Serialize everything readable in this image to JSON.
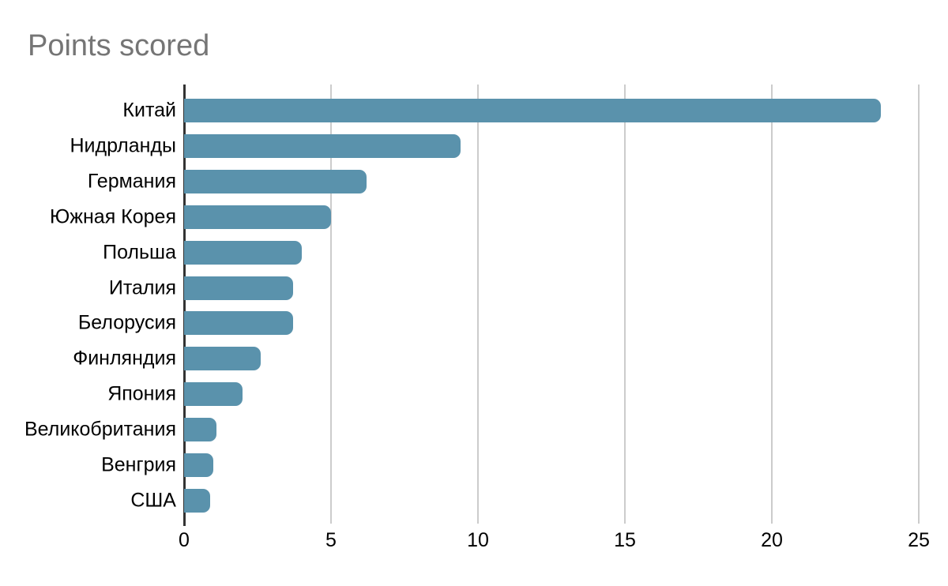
{
  "chart_data": {
    "type": "bar",
    "orientation": "horizontal",
    "title": "Points scored",
    "categories": [
      "Китай",
      "Нидрланды",
      "Германия",
      "Южная Корея",
      "Польша",
      "Италия",
      "Белорусия",
      "Финляндия",
      "Япония",
      "Великобритания",
      "Венгрия",
      "США"
    ],
    "values": [
      23.7,
      9.4,
      6.2,
      5,
      4,
      3.7,
      3.7,
      2.6,
      2,
      1.1,
      1,
      0.9
    ],
    "xlabel": "",
    "ylabel": "",
    "xlim": [
      0,
      25
    ],
    "x_ticks": [
      0,
      5,
      10,
      15,
      20,
      25
    ],
    "grid": "vertical-only",
    "legend": "none",
    "colors": {
      "bar": "#5a92ac",
      "title": "#757575",
      "gridline": "#cccccc",
      "axis_line": "#333333",
      "tick_label": "#000000",
      "background": "#ffffff"
    }
  }
}
